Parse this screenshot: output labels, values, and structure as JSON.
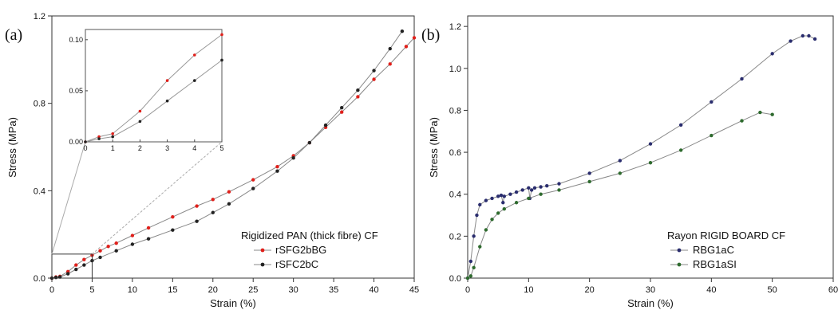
{
  "panels": [
    {
      "label": "(a)"
    },
    {
      "label": "(b)"
    }
  ],
  "chart_data": [
    {
      "type": "line",
      "xlabel": "Strain (%)",
      "ylabel": "Stress (MPa)",
      "xlim": [
        0,
        45
      ],
      "ylim": [
        0,
        1.2
      ],
      "xticks": [
        "0",
        "5",
        "10",
        "15",
        "20",
        "25",
        "30",
        "35",
        "40",
        "45"
      ],
      "yticks": [
        "0.0",
        "0.4",
        "0.8",
        "1.2"
      ],
      "legend_title": "Rigidized PAN (thick fibre) CF",
      "legend_position": "lower-right",
      "grid": false,
      "series": [
        {
          "name": "rSFG2bBG",
          "color": "#e0201b",
          "x": [
            0,
            0.5,
            1,
            2,
            3,
            4,
            5,
            6,
            7,
            8,
            10,
            12,
            15,
            18,
            20,
            22,
            25,
            28,
            30,
            32,
            34,
            36,
            38,
            40,
            42,
            44,
            45
          ],
          "y": [
            0,
            0.005,
            0.008,
            0.03,
            0.06,
            0.085,
            0.105,
            0.125,
            0.145,
            0.16,
            0.195,
            0.23,
            0.28,
            0.33,
            0.36,
            0.395,
            0.45,
            0.51,
            0.56,
            0.62,
            0.69,
            0.76,
            0.83,
            0.91,
            0.98,
            1.06,
            1.1
          ]
        },
        {
          "name": "rSFC2bC",
          "color": "#222222",
          "x": [
            0,
            0.5,
            1,
            2,
            3,
            4,
            5,
            6,
            8,
            10,
            12,
            15,
            18,
            20,
            22,
            25,
            28,
            30,
            32,
            34,
            36,
            38,
            40,
            42,
            43.5
          ],
          "y": [
            0,
            0.003,
            0.005,
            0.02,
            0.04,
            0.06,
            0.08,
            0.095,
            0.125,
            0.155,
            0.18,
            0.22,
            0.26,
            0.3,
            0.34,
            0.41,
            0.49,
            0.55,
            0.62,
            0.7,
            0.78,
            0.86,
            0.95,
            1.05,
            1.13
          ]
        }
      ],
      "inset": {
        "xlim": [
          0,
          5
        ],
        "ylim": [
          0,
          0.11
        ],
        "xticks": [
          "0",
          "1",
          "2",
          "3",
          "4",
          "5"
        ],
        "yticks": [
          "0.00",
          "0.05",
          "0.10"
        ],
        "zoom_box": {
          "x": [
            0,
            5
          ],
          "y": [
            0,
            0.11
          ]
        }
      }
    },
    {
      "type": "line",
      "xlabel": "Strain (%)",
      "ylabel": "Stress (MPa)",
      "xlim": [
        0,
        60
      ],
      "ylim": [
        0,
        1.25
      ],
      "xticks": [
        "0",
        "10",
        "20",
        "30",
        "40",
        "50",
        "60"
      ],
      "yticks": [
        "0.0",
        "0.2",
        "0.4",
        "0.6",
        "0.8",
        "1.0",
        "1.2"
      ],
      "legend_title": "Rayon RIGID BOARD CF",
      "legend_position": "lower-right",
      "grid": false,
      "series": [
        {
          "name": "RBG1aC",
          "color": "#2a2d6e",
          "x": [
            0,
            0.5,
            1,
            1.5,
            2,
            3,
            4,
            5,
            5.5,
            5.8,
            6,
            7,
            8,
            9,
            10,
            10.2,
            10.5,
            11,
            12,
            13,
            15,
            20,
            25,
            30,
            35,
            40,
            45,
            50,
            53,
            55,
            56,
            57
          ],
          "y": [
            0,
            0.08,
            0.2,
            0.3,
            0.35,
            0.37,
            0.38,
            0.39,
            0.395,
            0.36,
            0.39,
            0.4,
            0.41,
            0.42,
            0.43,
            0.38,
            0.42,
            0.43,
            0.435,
            0.44,
            0.45,
            0.5,
            0.56,
            0.64,
            0.73,
            0.84,
            0.95,
            1.07,
            1.13,
            1.155,
            1.155,
            1.14
          ]
        },
        {
          "name": "RBG1aSI",
          "color": "#2e6b2e",
          "x": [
            0,
            0.5,
            1,
            2,
            3,
            4,
            5,
            6,
            8,
            10,
            12,
            15,
            20,
            25,
            30,
            35,
            40,
            45,
            48,
            50
          ],
          "y": [
            0,
            0.01,
            0.05,
            0.15,
            0.23,
            0.28,
            0.31,
            0.33,
            0.36,
            0.38,
            0.4,
            0.42,
            0.46,
            0.5,
            0.55,
            0.61,
            0.68,
            0.75,
            0.79,
            0.78
          ]
        }
      ]
    }
  ]
}
